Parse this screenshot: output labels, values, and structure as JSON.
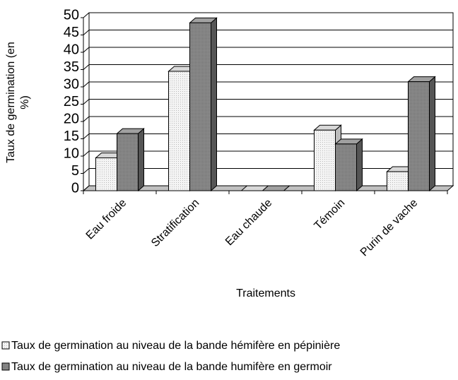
{
  "chart_data": {
    "type": "bar3d",
    "y_label": "Taux de germination (en %)",
    "x_label": "Traitements",
    "categories": [
      "Eau froide",
      "Stratification",
      "Eau chaude",
      "Témoin",
      "Purin de vache"
    ],
    "series": [
      {
        "name": "Taux de germination au niveau de la bande hémifère en pépinière",
        "color": "#ececec",
        "values": [
          9.5,
          34.5,
          0,
          17.5,
          5.5
        ]
      },
      {
        "name": "Taux de germination au niveau de la bande humifère en germoir",
        "color": "#8c8c8c",
        "values": [
          16.5,
          48.5,
          0,
          13.5,
          31.5
        ]
      }
    ],
    "ylim": [
      0,
      50
    ],
    "yticks": [
      0,
      5,
      10,
      15,
      20,
      25,
      30,
      35,
      40,
      45,
      50
    ],
    "grid": true
  }
}
